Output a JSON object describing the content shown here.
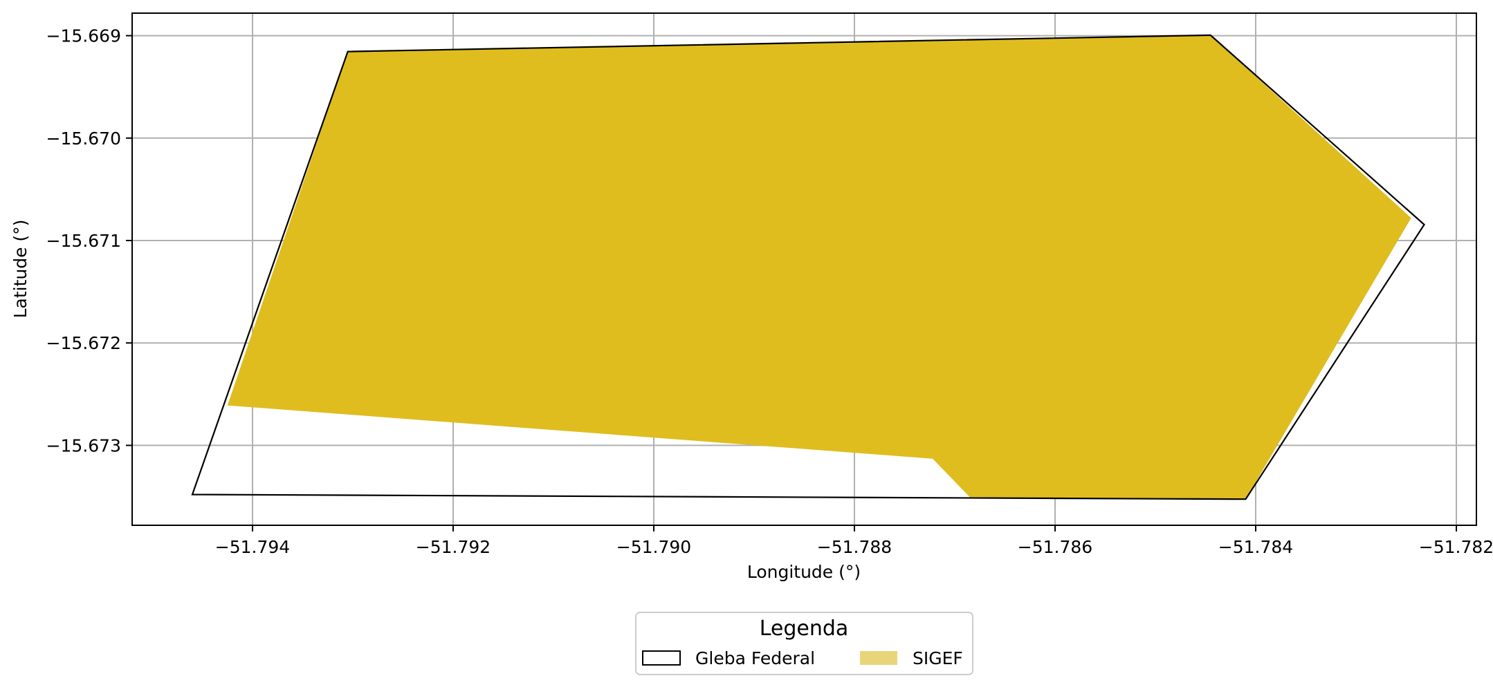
{
  "chart_data": {
    "type": "map",
    "xlabel": "Longitude (°)",
    "ylabel": "Latitude (°)",
    "xlim": [
      -51.7952,
      -51.7818
    ],
    "ylim": [
      -15.67378,
      -15.66878
    ],
    "grid": true,
    "x_ticks": [
      {
        "value": -51.794,
        "label": "−51.794"
      },
      {
        "value": -51.792,
        "label": "−51.792"
      },
      {
        "value": -51.79,
        "label": "−51.790"
      },
      {
        "value": -51.788,
        "label": "−51.788"
      },
      {
        "value": -51.786,
        "label": "−51.786"
      },
      {
        "value": -51.784,
        "label": "−51.784"
      },
      {
        "value": -51.782,
        "label": "−51.782"
      }
    ],
    "y_ticks": [
      {
        "value": -15.669,
        "label": "−15.669"
      },
      {
        "value": -15.67,
        "label": "−15.670"
      },
      {
        "value": -15.671,
        "label": "−15.671"
      },
      {
        "value": -15.672,
        "label": "−15.672"
      },
      {
        "value": -15.673,
        "label": "−15.673"
      }
    ],
    "series": [
      {
        "name": "SIGEF",
        "geometry": "polygon",
        "fill": "#dfbd1f",
        "legend_swatch": "#e8d57a",
        "coordinates": [
          [
            -51.79305,
            -15.669155
          ],
          [
            -51.78445,
            -15.668995
          ],
          [
            -51.78245,
            -15.67078
          ],
          [
            -51.7841,
            -15.673525
          ],
          [
            -51.78685,
            -15.673505
          ],
          [
            -51.78722,
            -15.67313
          ],
          [
            -51.79425,
            -15.67261
          ]
        ]
      },
      {
        "name": "Gleba Federal",
        "geometry": "polygon",
        "fill": "none",
        "stroke": "#000000",
        "coordinates": [
          [
            -51.79305,
            -15.669155
          ],
          [
            -51.78445,
            -15.668995
          ],
          [
            -51.78232,
            -15.670845
          ],
          [
            -51.7841,
            -15.673525
          ],
          [
            -51.7946,
            -15.67348
          ]
        ]
      }
    ],
    "legend": {
      "title": "Legenda",
      "placement": "bottom-center",
      "entries": [
        "Gleba Federal",
        "SIGEF"
      ]
    }
  }
}
